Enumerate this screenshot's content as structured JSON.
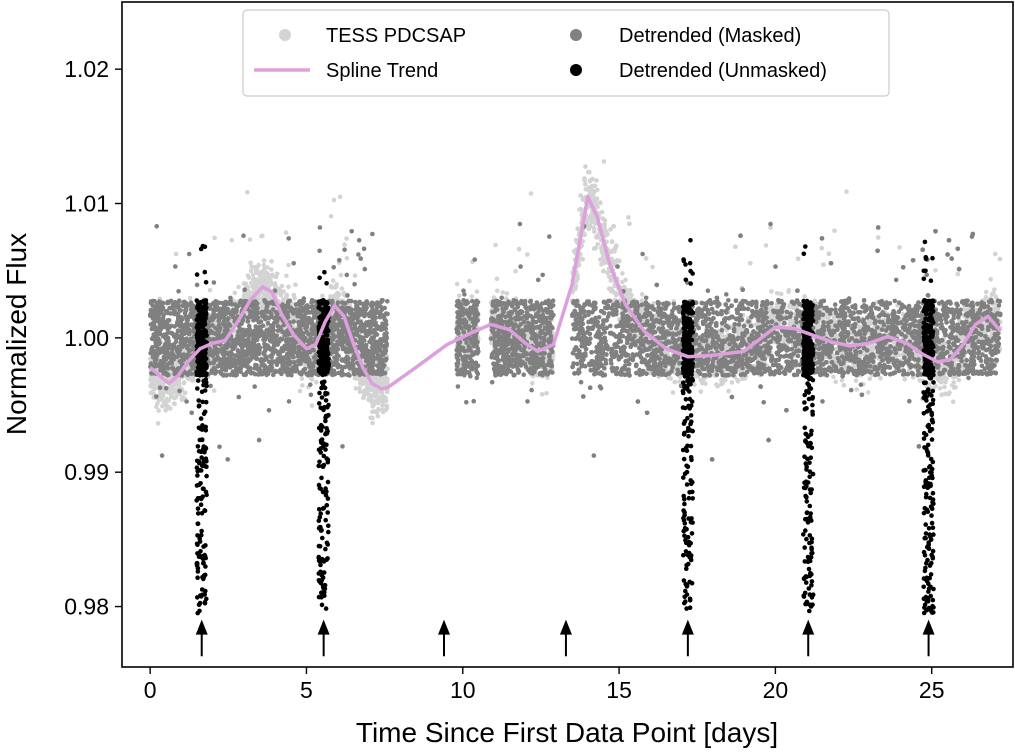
{
  "chart_data": {
    "type": "scatter",
    "xlabel": "Time Since First Data Point [days]",
    "ylabel": "Normalized Flux",
    "xlim": [
      -0.9,
      27.6
    ],
    "ylim": [
      0.9755,
      1.025
    ],
    "x_ticks": [
      0,
      5,
      10,
      15,
      20,
      25
    ],
    "y_ticks": [
      0.98,
      0.99,
      1.0,
      1.01,
      1.02
    ],
    "x_tick_labels": [
      "0",
      "5",
      "10",
      "15",
      "20",
      "25"
    ],
    "y_tick_labels": [
      "0.98",
      "0.99",
      "1.00",
      "1.01",
      "1.02"
    ],
    "grid": false,
    "legend_position": "top-center",
    "data_segments": [
      [
        0.0,
        7.6
      ],
      [
        9.8,
        10.5
      ],
      [
        10.9,
        12.9
      ],
      [
        13.5,
        27.2
      ]
    ],
    "series": [
      {
        "name": "TESS PDCSAP",
        "kind": "scatter",
        "color": "#d3d3d3",
        "note_points": [
          [
            0.0,
            0.9965
          ],
          [
            0.8,
            0.995
          ],
          [
            1.5,
            0.999
          ],
          [
            3.2,
            1.003
          ],
          [
            3.7,
            1.0065
          ],
          [
            4.2,
            1.004
          ],
          [
            5.5,
            0.998
          ],
          [
            6.0,
            1.004
          ],
          [
            6.4,
            1.005
          ],
          [
            7.3,
            0.996
          ],
          [
            7.5,
            0.9935
          ],
          [
            13.7,
            1.01
          ],
          [
            14.0,
            1.013
          ],
          [
            14.3,
            1.012
          ],
          [
            14.8,
            1.006
          ],
          [
            15.3,
            1.003
          ],
          [
            16.5,
            0.999
          ],
          [
            18.5,
            0.998
          ]
        ]
      },
      {
        "name": "Detrended (Masked)",
        "kind": "scatter",
        "color": "#808080",
        "center": 1.0,
        "band_halfwidth": 0.0028
      },
      {
        "name": "Spline Trend",
        "kind": "line",
        "color": "#dda0dd",
        "x": [
          0.0,
          0.3,
          0.6,
          0.9,
          1.2,
          1.6,
          2.0,
          2.4,
          2.8,
          3.2,
          3.6,
          3.9,
          4.2,
          4.6,
          5.0,
          5.3,
          5.6,
          5.9,
          6.2,
          6.5,
          6.8,
          7.1,
          7.4,
          7.6,
          8.5,
          9.5,
          10.3,
          10.9,
          11.5,
          12.0,
          12.4,
          12.9,
          13.5,
          14.0,
          14.3,
          14.7,
          15.2,
          15.8,
          16.5,
          17.2,
          18.0,
          19.0,
          20.0,
          20.6,
          21.2,
          21.8,
          22.4,
          23.0,
          23.6,
          24.2,
          24.7,
          25.2,
          25.6,
          26.0,
          26.4,
          26.8,
          27.2
        ],
        "y": [
          0.9978,
          0.9972,
          0.9966,
          0.9972,
          0.9982,
          0.9992,
          0.9996,
          0.9998,
          1.0012,
          1.0028,
          1.0038,
          1.0034,
          1.0018,
          1.0002,
          0.9992,
          0.9995,
          1.0012,
          1.0024,
          1.0016,
          0.9996,
          0.9978,
          0.9966,
          0.9962,
          0.9963,
          0.9978,
          0.9995,
          1.0004,
          1.001,
          1.0006,
          0.9996,
          0.999,
          0.9995,
          1.004,
          1.0105,
          1.009,
          1.0055,
          1.0025,
          1.0005,
          0.9992,
          0.9986,
          0.9987,
          0.999,
          1.0008,
          1.0007,
          1.0002,
          0.9997,
          0.9994,
          0.9996,
          1.0001,
          0.9996,
          0.9988,
          0.9982,
          0.9984,
          0.9995,
          1.001,
          1.0016,
          1.0005
        ]
      },
      {
        "name": "Detrended (Unmasked)",
        "kind": "scatter",
        "color": "#000000",
        "transit_times": [
          1.65,
          5.55,
          17.2,
          21.05,
          24.9
        ],
        "transit_min_flux": 0.9795,
        "transit_halfwidth_days": 0.16
      }
    ],
    "annotations": [
      {
        "type": "arrow",
        "x": 1.65,
        "y_from": 0.9763,
        "y_to": 0.9788
      },
      {
        "type": "arrow",
        "x": 5.55,
        "y_from": 0.9763,
        "y_to": 0.9788
      },
      {
        "type": "arrow",
        "x": 9.4,
        "y_from": 0.9763,
        "y_to": 0.9788
      },
      {
        "type": "arrow",
        "x": 13.3,
        "y_from": 0.9763,
        "y_to": 0.9788
      },
      {
        "type": "arrow",
        "x": 17.2,
        "y_from": 0.9763,
        "y_to": 0.9788
      },
      {
        "type": "arrow",
        "x": 21.05,
        "y_from": 0.9763,
        "y_to": 0.9788
      },
      {
        "type": "arrow",
        "x": 24.9,
        "y_from": 0.9763,
        "y_to": 0.9788
      }
    ]
  },
  "legend": {
    "items": [
      {
        "label": "TESS PDCSAP",
        "color": "#d3d3d3",
        "marker": "dot"
      },
      {
        "label": "Detrended (Masked)",
        "color": "#808080",
        "marker": "dot"
      },
      {
        "label": "Spline Trend",
        "color": "#dda0dd",
        "marker": "line"
      },
      {
        "label": "Detrended (Unmasked)",
        "color": "#000000",
        "marker": "dot"
      }
    ]
  }
}
